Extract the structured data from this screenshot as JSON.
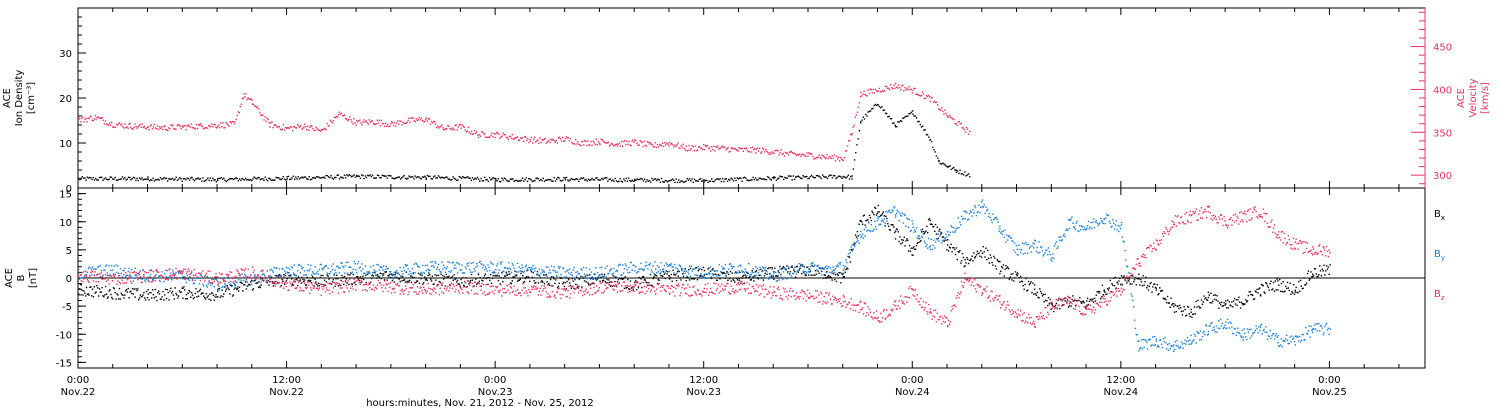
{
  "colors": {
    "black": "#000000",
    "pink": "#e8335f",
    "blue": "#1a7fd9"
  },
  "xlabel": "hours:minutes, Nov. 21, 2012 - Nov. 25, 2012",
  "x_ticks": [
    {
      "t": 0,
      "time": "0:00",
      "day": "Nov.22"
    },
    {
      "t": 12,
      "time": "12:00",
      "day": "Nov.22"
    },
    {
      "t": 24,
      "time": "0:00",
      "day": "Nov.23"
    },
    {
      "t": 36,
      "time": "12:00",
      "day": "Nov.23"
    },
    {
      "t": 48,
      "time": "0:00",
      "day": "Nov.24"
    },
    {
      "t": 60,
      "time": "12:00",
      "day": "Nov.24"
    },
    {
      "t": 72,
      "time": "0:00",
      "day": "Nov.25"
    }
  ],
  "chart_data": [
    {
      "type": "scatter",
      "panel": "top",
      "xlim": [
        0,
        77.5
      ],
      "ylabel_left": [
        "ACE",
        "Ion Density",
        "[cm⁻³]"
      ],
      "ylim_left": [
        0,
        40
      ],
      "yticks_left": [
        0,
        10,
        20,
        30
      ],
      "ylabel_right": [
        "ACE",
        "Velocity",
        "[km/s]"
      ],
      "ylim_right": [
        285,
        495
      ],
      "yticks_right": [
        300,
        350,
        400,
        450
      ],
      "series": [
        {
          "axis": "left",
          "color": "#000000",
          "x": [
            0,
            4,
            8,
            12,
            16,
            20,
            24,
            28,
            32,
            36,
            40,
            44,
            44.5,
            45,
            46,
            47,
            48,
            49,
            49.5,
            50,
            50.5,
            51.3
          ],
          "y": [
            2.2,
            2.2,
            2.0,
            2.3,
            2.7,
            2.5,
            2.0,
            2.1,
            1.9,
            1.8,
            2.3,
            2.7,
            2.5,
            15,
            19,
            14,
            17,
            11,
            6,
            5,
            4,
            3
          ]
        },
        {
          "axis": "right",
          "color": "#e8335f",
          "x": [
            0,
            1,
            2,
            3,
            4,
            5,
            6,
            7,
            8,
            9,
            9.5,
            10,
            11,
            12,
            13,
            14,
            15,
            16,
            17,
            18,
            19,
            20,
            21,
            22,
            23,
            24,
            25,
            26,
            27,
            28,
            29,
            30,
            31,
            32,
            33,
            34,
            35,
            36,
            37,
            38,
            39,
            40,
            41,
            42,
            43,
            44,
            44.5,
            45,
            46,
            47,
            48,
            49,
            50,
            51.3
          ],
          "y": [
            365,
            368,
            360,
            358,
            357,
            356,
            357,
            358,
            359,
            360,
            395,
            385,
            360,
            355,
            358,
            352,
            372,
            362,
            363,
            360,
            364,
            366,
            355,
            357,
            348,
            348,
            345,
            342,
            340,
            343,
            338,
            340,
            337,
            339,
            335,
            338,
            332,
            333,
            332,
            330,
            330,
            328,
            325,
            324,
            322,
            320,
            350,
            395,
            400,
            405,
            400,
            390,
            370,
            350
          ]
        }
      ]
    },
    {
      "type": "scatter",
      "panel": "bottom",
      "xlim": [
        0,
        77.5
      ],
      "ylabel_left": [
        "ACE",
        "B",
        "[nT]"
      ],
      "ylim_left": [
        -16,
        16
      ],
      "yticks_left": [
        -15,
        -10,
        -5,
        0,
        5,
        10,
        15
      ],
      "series": [
        {
          "name": "Bx",
          "color": "#000000",
          "x": [
            0,
            2,
            4,
            6,
            8,
            10,
            12,
            14,
            16,
            18,
            20,
            22,
            24,
            26,
            28,
            30,
            32,
            34,
            36,
            38,
            40,
            42,
            43,
            44,
            45,
            46,
            47,
            48,
            49,
            50,
            51,
            52,
            53,
            54,
            55,
            56,
            57,
            58,
            59,
            60,
            61,
            62,
            63,
            64,
            65,
            66,
            67,
            68,
            69,
            70,
            71,
            72
          ],
          "y": [
            -2,
            -2.5,
            -3,
            -2.5,
            -2.8,
            -1,
            0,
            -0.5,
            0,
            0.5,
            0,
            -0.5,
            0,
            0.5,
            -1,
            0,
            -1,
            0.5,
            1,
            0,
            1,
            1.5,
            1,
            0,
            10,
            12,
            8,
            5,
            10,
            6,
            3,
            5,
            2,
            0,
            -2,
            -5,
            -4,
            -4.5,
            -2,
            0,
            0,
            -2,
            -5,
            -6,
            -3,
            -5,
            -4,
            -2,
            -1,
            -2,
            1,
            1.5
          ]
        },
        {
          "name": "By",
          "color": "#1a7fd9",
          "x": [
            0,
            2,
            4,
            6,
            8,
            10,
            12,
            14,
            16,
            18,
            20,
            22,
            24,
            26,
            28,
            30,
            32,
            34,
            36,
            38,
            40,
            42,
            43,
            44,
            45,
            46,
            47,
            48,
            49,
            50,
            51,
            52,
            53,
            54,
            55,
            56,
            57,
            58,
            59,
            60,
            61,
            62,
            63,
            64,
            65,
            66,
            67,
            68,
            69,
            70,
            71,
            72
          ],
          "y": [
            1,
            1.5,
            0.5,
            0.5,
            -1,
            0,
            1.5,
            1.5,
            2,
            1,
            2,
            2,
            2,
            1.5,
            1,
            1,
            2,
            2,
            1,
            2,
            0.5,
            2,
            1.5,
            2,
            8,
            10,
            12,
            9,
            6,
            8,
            11,
            13,
            9,
            5,
            6,
            4,
            10,
            9,
            11,
            9,
            -12,
            -11,
            -12,
            -11,
            -9,
            -8,
            -10,
            -9,
            -11,
            -11,
            -9,
            -9
          ]
        },
        {
          "name": "Bz",
          "color": "#e8335f",
          "x": [
            0,
            2,
            4,
            6,
            8,
            10,
            12,
            14,
            16,
            18,
            20,
            22,
            24,
            26,
            28,
            30,
            32,
            34,
            36,
            38,
            40,
            42,
            43,
            44,
            45,
            46,
            47,
            48,
            49,
            50,
            51,
            52,
            53,
            54,
            55,
            56,
            57,
            58,
            59,
            60,
            61,
            62,
            63,
            64,
            65,
            66,
            67,
            68,
            69,
            70,
            71,
            72
          ],
          "y": [
            0.5,
            0,
            0.5,
            1,
            0,
            1,
            -1,
            -2,
            -1,
            -1.5,
            -2,
            -1.5,
            -2,
            -2,
            -2.5,
            -1.5,
            -1.5,
            -2,
            -2,
            -1.5,
            -2.5,
            -3,
            -3.5,
            -4,
            -5,
            -7,
            -5,
            -2,
            -6,
            -8,
            0,
            -2,
            -4,
            -6,
            -8,
            -5,
            -4,
            -6,
            -4,
            -2,
            3,
            6,
            10,
            11,
            12,
            10,
            11,
            12,
            8,
            6,
            5,
            5
          ]
        }
      ]
    }
  ]
}
